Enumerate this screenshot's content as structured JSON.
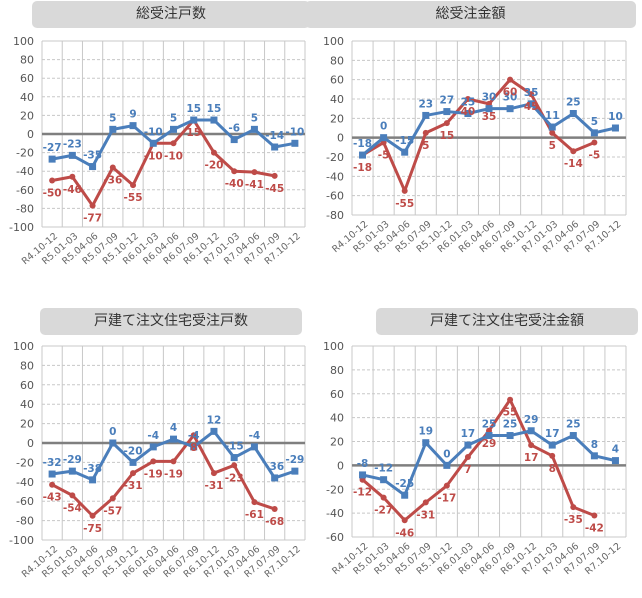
{
  "colors": {
    "blue": "#4a7ebb",
    "red": "#be4b48",
    "grid": "#c8c8c8",
    "zero": "#7f7f7f",
    "title_bg": "#d9d9d9"
  },
  "chart_data": [
    {
      "type": "line",
      "title": "総受注戸数",
      "categories": [
        "R4.10-12",
        "R5.01-03",
        "R5.04-06",
        "R5.07-09",
        "R5.10-12",
        "R6.01-03",
        "R6.04-06",
        "R6.07-09",
        "R6.10-12",
        "R7.01-03",
        "R7.04-06",
        "R7.07-09",
        "R7.10-12"
      ],
      "ylim": [
        -100,
        100
      ],
      "yticks": [
        100,
        80,
        60,
        40,
        20,
        0,
        -20,
        -40,
        -60,
        -80,
        -100
      ],
      "grid": true,
      "series": [
        {
          "name": "blue",
          "color": "#4a7ebb",
          "values": [
            -27,
            -23,
            -35,
            5,
            9,
            -10,
            5,
            15,
            15,
            -6,
            5,
            -14,
            -10
          ]
        },
        {
          "name": "red",
          "color": "#be4b48",
          "values": [
            -50,
            -46,
            -77,
            -36,
            -55,
            -10,
            -10,
            15,
            -20,
            -40,
            -41,
            -45,
            null
          ]
        }
      ]
    },
    {
      "type": "line",
      "title": "総受注金額",
      "categories": [
        "R4.10-12",
        "R5.01-03",
        "R5.04-06",
        "R5.07-09",
        "R5.10-12",
        "R6.01-03",
        "R6.04-06",
        "R6.07-09",
        "R6.10-12",
        "R7.01-03",
        "R7.04-06",
        "R7.07-09",
        "R7.10-12"
      ],
      "ylim": [
        -80,
        100
      ],
      "yticks": [
        100,
        80,
        60,
        40,
        20,
        0,
        -20,
        -40,
        -60,
        -80
      ],
      "grid": true,
      "series": [
        {
          "name": "blue",
          "color": "#4a7ebb",
          "values": [
            -18,
            0,
            -15,
            23,
            27,
            25,
            30,
            30,
            35,
            11,
            25,
            5,
            10
          ]
        },
        {
          "name": "red",
          "color": "#be4b48",
          "values": [
            -18,
            -5,
            -55,
            5,
            15,
            40,
            35,
            60,
            45,
            5,
            -14,
            -5,
            null
          ]
        }
      ]
    },
    {
      "type": "line",
      "title": "戸建て注文住宅受注戸数",
      "categories": [
        "R4.10-12",
        "R5.01-03",
        "R5.04-06",
        "R5.07-09",
        "R5.10-12",
        "R6.01-03",
        "R6.04-06",
        "R6.07-09",
        "R6.10-12",
        "R7.01-03",
        "R7.04-06",
        "R7.07-09",
        "R7.10-12"
      ],
      "ylim": [
        -100,
        100
      ],
      "yticks": [
        100,
        80,
        60,
        40,
        20,
        0,
        -20,
        -40,
        -60,
        -80,
        -100
      ],
      "grid": true,
      "series": [
        {
          "name": "blue",
          "color": "#4a7ebb",
          "values": [
            -32,
            -29,
            -38,
            0,
            -20,
            -4,
            4,
            -4,
            12,
            -15,
            -4,
            -36,
            -29
          ]
        },
        {
          "name": "red",
          "color": "#be4b48",
          "values": [
            -43,
            -54,
            -75,
            -57,
            -31,
            -19,
            -19,
            8,
            -31,
            -23,
            -61,
            -68,
            null
          ]
        }
      ]
    },
    {
      "type": "line",
      "title": "戸建て注文住宅受注金額",
      "categories": [
        "R4.10-12",
        "R5.01-03",
        "R5.04-06",
        "R5.07-09",
        "R5.10-12",
        "R6.01-03",
        "R6.04-06",
        "R6.07-09",
        "R6.10-12",
        "R7.01-03",
        "R7.04-06",
        "R7.07-09",
        "R7.10-12"
      ],
      "ylim": [
        -60,
        100
      ],
      "yticks": [
        100,
        80,
        60,
        40,
        20,
        0,
        -20,
        -40,
        -60
      ],
      "grid": true,
      "series": [
        {
          "name": "blue",
          "color": "#4a7ebb",
          "values": [
            -8,
            -12,
            -25,
            19,
            0,
            17,
            25,
            25,
            29,
            17,
            25,
            8,
            4
          ]
        },
        {
          "name": "red",
          "color": "#be4b48",
          "values": [
            -12,
            -27,
            -46,
            -31,
            -17,
            7,
            29,
            55,
            17,
            8,
            -35,
            -42,
            null
          ]
        }
      ]
    }
  ]
}
